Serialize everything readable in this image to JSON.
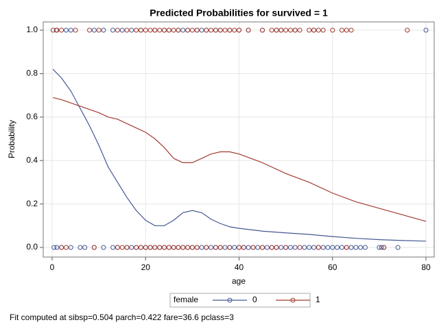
{
  "chart_data": {
    "type": "line",
    "title": "Predicted Probabilities for survived = 1",
    "x_label": "age",
    "y_label": "Probability",
    "legend_title": "female",
    "footnote": "Fit computed at sibsp=0.504 parch=0.422 fare=36.6 pclass=3",
    "xlim": [
      0,
      80
    ],
    "ylim": [
      0,
      1
    ],
    "xticks": [
      0,
      20,
      40,
      60,
      80
    ],
    "yticks": [
      {
        "value": 0,
        "label": "0.0"
      },
      0.2,
      0.4,
      0.6,
      0.8,
      {
        "value": 1,
        "label": "1.0"
      }
    ],
    "grid": true,
    "series": [
      {
        "name": "0",
        "color": "#445694",
        "x": [
          0.17,
          2,
          4,
          6,
          8,
          10,
          12,
          14,
          16,
          18,
          20,
          22,
          24,
          26,
          28,
          30,
          32,
          34,
          36,
          38,
          40,
          45,
          50,
          55,
          60,
          65,
          70,
          75,
          80
        ],
        "values": [
          0.82,
          0.78,
          0.72,
          0.64,
          0.56,
          0.47,
          0.37,
          0.3,
          0.23,
          0.17,
          0.125,
          0.1,
          0.1,
          0.125,
          0.16,
          0.17,
          0.16,
          0.13,
          0.11,
          0.095,
          0.088,
          0.075,
          0.067,
          0.06,
          0.05,
          0.042,
          0.036,
          0.032,
          0.029
        ],
        "observed": [
          {
            "y": 1,
            "x": [
              0.9,
              1,
              3,
              4,
              9,
              11,
              13,
              15,
              17,
              19,
              22,
              24,
              25,
              27,
              28,
              29,
              31,
              32,
              33,
              35,
              36,
              38,
              40,
              42,
              45,
              48,
              49,
              52,
              56,
              80
            ]
          },
          {
            "y": 0,
            "x": [
              0.4,
              1,
              2,
              4,
              6,
              7,
              9,
              11,
              13,
              14,
              16,
              17,
              18,
              19,
              20,
              21,
              22,
              23,
              24,
              25,
              26,
              27,
              28,
              29,
              30,
              31,
              32,
              33,
              34,
              35,
              36,
              37,
              38,
              39,
              40,
              41,
              42,
              43,
              44,
              45,
              46,
              47,
              48,
              49,
              50,
              51,
              52,
              54,
              55,
              56,
              57,
              58,
              59,
              60,
              61,
              62,
              63,
              64,
              65,
              66,
              67,
              70,
              70.5,
              71,
              74
            ]
          }
        ]
      },
      {
        "name": "1",
        "color": "#a23a2e",
        "x": [
          0.17,
          2,
          4,
          6,
          8,
          10,
          12,
          14,
          16,
          18,
          20,
          22,
          24,
          26,
          28,
          30,
          32,
          34,
          36,
          38,
          40,
          45,
          50,
          55,
          60,
          65,
          70,
          75,
          80
        ],
        "values": [
          0.69,
          0.68,
          0.665,
          0.65,
          0.635,
          0.62,
          0.6,
          0.59,
          0.57,
          0.55,
          0.53,
          0.5,
          0.46,
          0.41,
          0.39,
          0.39,
          0.41,
          0.43,
          0.44,
          0.44,
          0.43,
          0.39,
          0.34,
          0.3,
          0.25,
          0.21,
          0.18,
          0.15,
          0.12
        ],
        "observed": [
          {
            "y": 1,
            "x": [
              0.2,
              1,
              2,
              5,
              8,
              10,
              14,
              16,
              18,
              19,
              20,
              21,
              22,
              23,
              24,
              25,
              26,
              27,
              29,
              30,
              31,
              33,
              34,
              35,
              36,
              37,
              38,
              39,
              40,
              42,
              45,
              47,
              48,
              49,
              50,
              51,
              52,
              53,
              55,
              56,
              57,
              58,
              60,
              62,
              63,
              64,
              76
            ]
          },
          {
            "y": 0,
            "x": [
              2,
              3,
              9,
              14,
              15,
              16,
              18,
              19,
              20,
              21,
              22,
              23,
              24,
              25,
              26,
              27,
              28,
              29,
              30,
              31,
              33,
              35,
              36,
              38,
              40,
              41,
              43,
              45,
              47,
              48,
              50,
              53,
              57,
              63,
              71
            ]
          }
        ]
      }
    ]
  }
}
